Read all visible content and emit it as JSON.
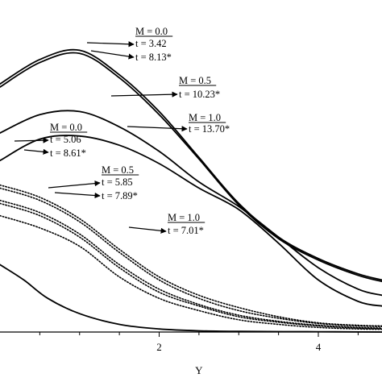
{
  "chart_data": {
    "type": "line",
    "xlabel": "Y",
    "ylabel": "",
    "xlim": [
      0,
      4.8
    ],
    "ylim": [
      0,
      1
    ],
    "x_ticks": [
      2,
      4
    ],
    "series": [
      {
        "style": "solid",
        "points": [
          [
            0,
            0.81
          ],
          [
            0.5,
            0.89
          ],
          [
            1.0,
            0.92
          ],
          [
            1.5,
            0.84
          ],
          [
            2.0,
            0.72
          ],
          [
            2.5,
            0.57
          ],
          [
            3.0,
            0.42
          ],
          [
            3.5,
            0.31
          ],
          [
            4.0,
            0.24
          ],
          [
            4.5,
            0.19
          ],
          [
            4.8,
            0.17
          ]
        ]
      },
      {
        "style": "solid",
        "points": [
          [
            0,
            0.8
          ],
          [
            0.5,
            0.88
          ],
          [
            1.0,
            0.91
          ],
          [
            1.5,
            0.83
          ],
          [
            2.0,
            0.71
          ],
          [
            2.5,
            0.565
          ],
          [
            3.0,
            0.415
          ],
          [
            3.5,
            0.305
          ],
          [
            4.0,
            0.235
          ],
          [
            4.5,
            0.185
          ],
          [
            4.8,
            0.165
          ]
        ]
      },
      {
        "style": "solid",
        "points": [
          [
            0,
            0.65
          ],
          [
            0.5,
            0.71
          ],
          [
            1.0,
            0.72
          ],
          [
            1.5,
            0.67
          ],
          [
            2.0,
            0.59
          ],
          [
            2.5,
            0.49
          ],
          [
            3.0,
            0.41
          ],
          [
            3.5,
            0.31
          ],
          [
            4.0,
            0.21
          ],
          [
            4.5,
            0.14
          ],
          [
            4.8,
            0.12
          ]
        ]
      },
      {
        "style": "solid",
        "points": [
          [
            0,
            0.56
          ],
          [
            0.5,
            0.63
          ],
          [
            1.0,
            0.64
          ],
          [
            1.5,
            0.61
          ],
          [
            2.0,
            0.55
          ],
          [
            2.5,
            0.47
          ],
          [
            3.0,
            0.4
          ],
          [
            3.5,
            0.29
          ],
          [
            4.0,
            0.17
          ],
          [
            4.5,
            0.1
          ],
          [
            4.8,
            0.085
          ]
        ]
      },
      {
        "style": "dotted",
        "points": [
          [
            0,
            0.48
          ],
          [
            0.5,
            0.44
          ],
          [
            1.0,
            0.37
          ],
          [
            1.5,
            0.27
          ],
          [
            2.0,
            0.18
          ],
          [
            2.5,
            0.12
          ],
          [
            3.0,
            0.08
          ],
          [
            3.5,
            0.05
          ],
          [
            4.0,
            0.03
          ],
          [
            4.5,
            0.022
          ],
          [
            4.8,
            0.02
          ]
        ]
      },
      {
        "style": "dotted",
        "points": [
          [
            0,
            0.47
          ],
          [
            0.5,
            0.43
          ],
          [
            1.0,
            0.36
          ],
          [
            1.5,
            0.26
          ],
          [
            2.0,
            0.17
          ],
          [
            2.5,
            0.11
          ],
          [
            3.0,
            0.07
          ],
          [
            3.5,
            0.045
          ],
          [
            4.0,
            0.028
          ],
          [
            4.5,
            0.02
          ],
          [
            4.8,
            0.018
          ]
        ]
      },
      {
        "style": "dotted",
        "points": [
          [
            0,
            0.43
          ],
          [
            0.5,
            0.39
          ],
          [
            1.0,
            0.32
          ],
          [
            1.5,
            0.22
          ],
          [
            2.0,
            0.14
          ],
          [
            2.5,
            0.09
          ],
          [
            3.0,
            0.055
          ],
          [
            3.5,
            0.035
          ],
          [
            4.0,
            0.022
          ],
          [
            4.5,
            0.015
          ],
          [
            4.8,
            0.013
          ]
        ]
      },
      {
        "style": "dotted",
        "points": [
          [
            0,
            0.42
          ],
          [
            0.5,
            0.38
          ],
          [
            1.0,
            0.31
          ],
          [
            1.5,
            0.21
          ],
          [
            2.0,
            0.13
          ],
          [
            2.5,
            0.085
          ],
          [
            3.0,
            0.05
          ],
          [
            3.5,
            0.032
          ],
          [
            4.0,
            0.02
          ],
          [
            4.5,
            0.013
          ],
          [
            4.8,
            0.011
          ]
        ]
      },
      {
        "style": "dotted",
        "points": [
          [
            0,
            0.38
          ],
          [
            0.5,
            0.34
          ],
          [
            1.0,
            0.28
          ],
          [
            1.5,
            0.18
          ],
          [
            2.0,
            0.11
          ],
          [
            2.5,
            0.07
          ],
          [
            3.0,
            0.04
          ],
          [
            3.5,
            0.025
          ],
          [
            4.0,
            0.015
          ],
          [
            4.5,
            0.01
          ],
          [
            4.8,
            0.009
          ]
        ]
      },
      {
        "style": "solid",
        "points": [
          [
            0,
            0.22
          ],
          [
            0.3,
            0.17
          ],
          [
            0.6,
            0.11
          ],
          [
            1.0,
            0.06
          ],
          [
            1.5,
            0.025
          ],
          [
            2.0,
            0.01
          ],
          [
            2.5,
            0.004
          ],
          [
            3.0,
            0.002
          ],
          [
            4.0,
            0.001
          ],
          [
            4.8,
            0.0
          ]
        ]
      }
    ],
    "annotations": [
      {
        "header": "M = 0.0",
        "lines": [
          "t = 3.42",
          "t = 8.13*"
        ]
      },
      {
        "header": "M = 0.5",
        "lines": [
          "t = 10.23*"
        ]
      },
      {
        "header": "M = 1.0",
        "lines": [
          "t = 13.70*"
        ]
      },
      {
        "header": "M = 0.0",
        "lines": [
          "t = 5.06",
          "t = 8.61*"
        ]
      },
      {
        "header": "M = 0.5",
        "lines": [
          "t = 5.85",
          "t = 7.89*"
        ]
      },
      {
        "header": "M = 1.0",
        "lines": [
          "t = 7.01*"
        ]
      }
    ]
  }
}
